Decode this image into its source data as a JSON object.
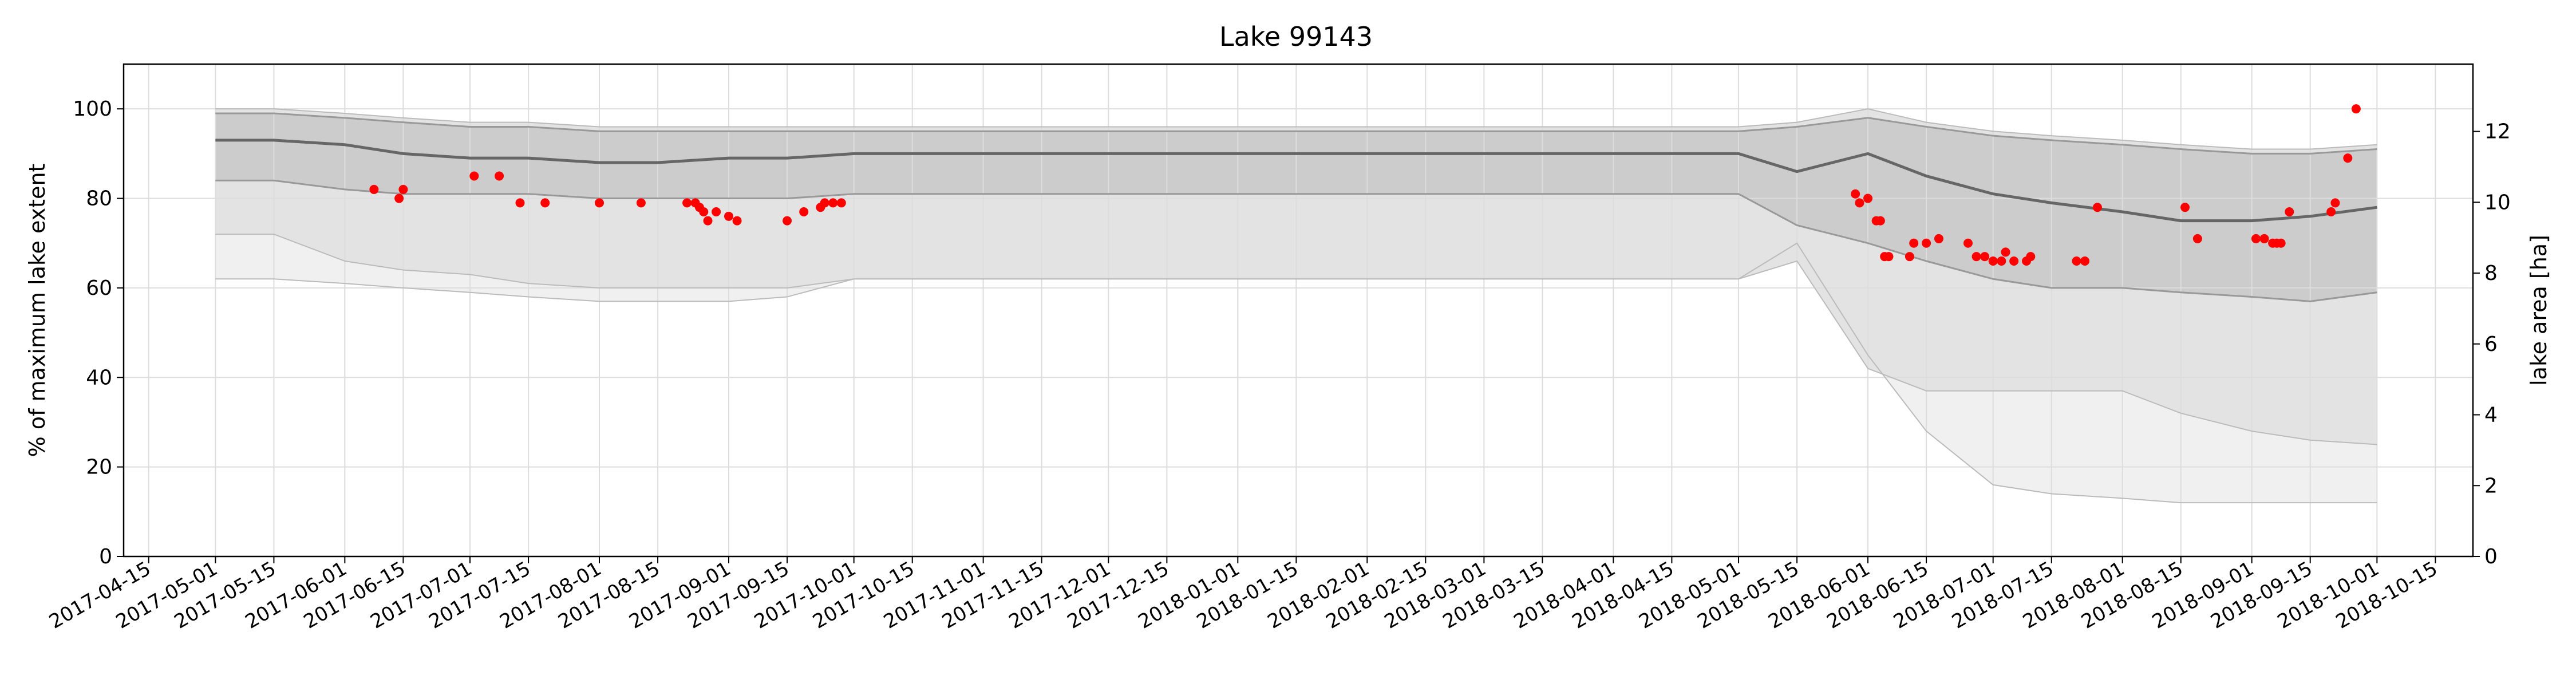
{
  "chart_data": {
    "type": "line",
    "title": "Lake 99143",
    "ylabel": "% of maximum lake extent",
    "y2label": "lake area [ha]",
    "xlim": [
      "2017-04-09",
      "2018-10-24"
    ],
    "ylim": [
      0,
      110
    ],
    "y2lim": [
      0,
      13.9
    ],
    "grid": true,
    "x_ticks": [
      "2017-04-15",
      "2017-05-01",
      "2017-05-15",
      "2017-06-01",
      "2017-06-15",
      "2017-07-01",
      "2017-07-15",
      "2017-08-01",
      "2017-08-15",
      "2017-09-01",
      "2017-09-15",
      "2017-10-01",
      "2017-10-15",
      "2017-11-01",
      "2017-11-15",
      "2017-12-01",
      "2017-12-15",
      "2018-01-01",
      "2018-01-15",
      "2018-02-01",
      "2018-02-15",
      "2018-03-01",
      "2018-03-15",
      "2018-04-01",
      "2018-04-15",
      "2018-05-01",
      "2018-05-15",
      "2018-06-01",
      "2018-06-15",
      "2018-07-01",
      "2018-07-15",
      "2018-08-01",
      "2018-08-15",
      "2018-09-01",
      "2018-09-15",
      "2018-10-01",
      "2018-10-15"
    ],
    "y_ticks": [
      "0",
      "20",
      "40",
      "60",
      "80",
      "100"
    ],
    "y2_ticks": [
      "0",
      "2",
      "4",
      "6",
      "8",
      "10",
      "12"
    ],
    "colors": {
      "median": "#666666",
      "band_inner": "#cccccc",
      "band_middle": "#e3e3e3",
      "band_outer": "#f0f0f0",
      "band_edge": "#999999",
      "outer_edge": "#bbbbbb",
      "points": "#ff0000",
      "grid": "#dddddd"
    },
    "bands": {
      "x": [
        "2017-05-01",
        "2017-05-15",
        "2017-06-01",
        "2017-06-15",
        "2017-07-01",
        "2017-07-15",
        "2017-08-01",
        "2017-08-15",
        "2017-09-01",
        "2017-09-15",
        "2017-10-01",
        "2018-05-01",
        "2018-05-15",
        "2018-06-01",
        "2018-06-15",
        "2018-07-01",
        "2018-07-15",
        "2018-08-01",
        "2018-08-15",
        "2018-09-01",
        "2018-09-15",
        "2018-10-01"
      ],
      "median": [
        93,
        93,
        92,
        90,
        89,
        89,
        88,
        88,
        89,
        89,
        90,
        90,
        86,
        90,
        85,
        81,
        79,
        77,
        75,
        75,
        76,
        78
      ],
      "inner_upper": [
        99,
        99,
        98,
        97,
        96,
        96,
        95,
        95,
        95,
        95,
        95,
        95,
        96,
        98,
        96,
        94,
        93,
        92,
        91,
        90,
        90,
        91
      ],
      "inner_lower": [
        84,
        84,
        82,
        81,
        81,
        81,
        80,
        80,
        80,
        80,
        81,
        81,
        74,
        70,
        66,
        62,
        60,
        60,
        59,
        58,
        57,
        59
      ],
      "outer_upper": [
        100,
        100,
        99,
        98,
        97,
        97,
        96,
        96,
        96,
        96,
        96,
        96,
        97,
        100,
        97,
        95,
        94,
        93,
        92,
        91,
        91,
        92
      ],
      "outer_lower": [
        72,
        72,
        66,
        64,
        63,
        61,
        60,
        60,
        60,
        60,
        62,
        62,
        66,
        42,
        37,
        37,
        37,
        37,
        32,
        28,
        26,
        25
      ],
      "outermost_lower": [
        62,
        62,
        61,
        60,
        59,
        58,
        57,
        57,
        57,
        58,
        62,
        62,
        70,
        45,
        28,
        16,
        14,
        13,
        12,
        12,
        12,
        12
      ]
    },
    "series": [
      {
        "type": "scatter",
        "x": [
          "2017-06-08",
          "2017-06-14",
          "2017-06-15",
          "2017-07-02",
          "2017-07-08",
          "2017-07-13",
          "2017-07-19",
          "2017-08-01",
          "2017-08-11",
          "2017-08-22",
          "2017-08-24",
          "2017-08-25",
          "2017-08-26",
          "2017-08-27",
          "2017-08-29",
          "2017-09-01",
          "2017-09-03",
          "2017-09-15",
          "2017-09-19",
          "2017-09-23",
          "2017-09-24",
          "2017-09-26",
          "2017-09-28",
          "2018-05-29",
          "2018-05-30",
          "2018-06-01",
          "2018-06-03",
          "2018-06-04",
          "2018-06-05",
          "2018-06-06",
          "2018-06-11",
          "2018-06-12",
          "2018-06-15",
          "2018-06-18",
          "2018-06-25",
          "2018-06-27",
          "2018-06-29",
          "2018-07-01",
          "2018-07-03",
          "2018-07-04",
          "2018-07-06",
          "2018-07-09",
          "2018-07-10",
          "2018-07-21",
          "2018-07-23",
          "2018-07-26",
          "2018-08-16",
          "2018-08-19",
          "2018-09-02",
          "2018-09-04",
          "2018-09-06",
          "2018-09-07",
          "2018-09-08",
          "2018-09-10",
          "2018-09-20",
          "2018-09-21",
          "2018-09-24",
          "2018-09-26"
        ],
        "values": [
          82,
          80,
          82,
          85,
          85,
          79,
          79,
          79,
          79,
          79,
          79,
          78,
          77,
          75,
          77,
          76,
          75,
          75,
          77,
          78,
          79,
          79,
          79,
          81,
          79,
          80,
          75,
          75,
          67,
          67,
          67,
          70,
          70,
          71,
          70,
          67,
          67,
          66,
          66,
          68,
          66,
          66,
          67,
          66,
          66,
          78,
          78,
          71,
          71,
          71,
          70,
          70,
          70,
          77,
          77,
          79,
          89,
          100
        ]
      }
    ]
  }
}
